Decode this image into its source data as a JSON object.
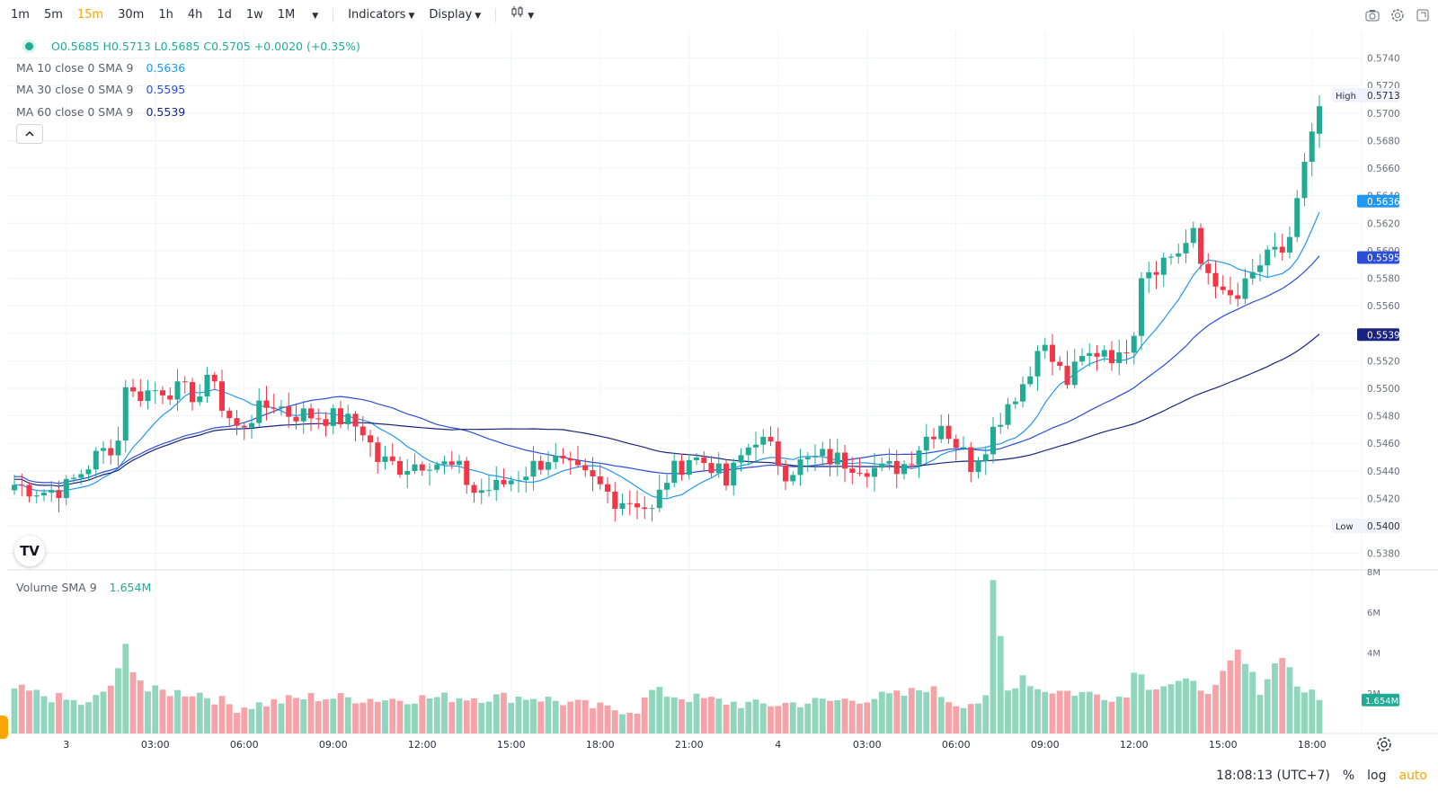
{
  "toolbar": {
    "timeframes": [
      "1m",
      "5m",
      "15m",
      "30m",
      "1h",
      "4h",
      "1d",
      "1w",
      "1M"
    ],
    "active_timeframe": "15m",
    "indicators_label": "Indicators",
    "display_label": "Display"
  },
  "legend": {
    "ohlc": "O0.5685 H0.5713 L0.5685 C0.5705 +0.0020 (+0.35%)",
    "ma10_label": "MA 10 close 0 SMA 9",
    "ma10_value": "0.5636",
    "ma30_label": "MA 30 close 0 SMA 9",
    "ma30_value": "0.5595",
    "ma60_label": "MA 60 close 0 SMA 9",
    "ma60_value": "0.5539",
    "volume_label": "Volume SMA 9",
    "volume_value": "1.654M"
  },
  "status": {
    "time": "18:08:13 (UTC+7)",
    "percent": "%",
    "log": "log",
    "auto": "auto"
  },
  "colors": {
    "up": "#22ab94",
    "down": "#f23645",
    "up_volume": "#8fd6bd",
    "down_volume": "#f5a3a8",
    "ma10": "#2196f3",
    "ma30": "#2a4fd6",
    "ma60": "#1a237e",
    "accent": "#f7a600"
  },
  "chart_data": {
    "type": "candlestick",
    "interval": "15m",
    "price_axis": {
      "ylim": [
        0.5368,
        0.576
      ],
      "ticks": [
        "0.5380",
        "0.5400",
        "0.5420",
        "0.5440",
        "0.5460",
        "0.5480",
        "0.5500",
        "0.5520",
        "0.5540",
        "0.5560",
        "0.5580",
        "0.5600",
        "0.5620",
        "0.5640",
        "0.5660",
        "0.5680",
        "0.5700",
        "0.5720",
        "0.5740"
      ],
      "high_label": "High",
      "high_value": "0.5713",
      "low_label": "Low",
      "low_value": "0.5400",
      "ma_labels": [
        {
          "name": "MA 10",
          "value": "0.5636"
        },
        {
          "name": "MA 30",
          "value": "0.5595"
        },
        {
          "name": "MA 60",
          "value": "0.5539"
        }
      ]
    },
    "volume_axis": {
      "ylim": [
        0,
        8000000
      ],
      "ticks": [
        "2M",
        "4M",
        "6M",
        "8M"
      ],
      "current_label": "1.654M"
    },
    "time_axis": {
      "labels": [
        {
          "text": "3",
          "bar": 7
        },
        {
          "text": "03:00",
          "bar": 19
        },
        {
          "text": "06:00",
          "bar": 31
        },
        {
          "text": "09:00",
          "bar": 43
        },
        {
          "text": "12:00",
          "bar": 55
        },
        {
          "text": "15:00",
          "bar": 67
        },
        {
          "text": "18:00",
          "bar": 79
        },
        {
          "text": "21:00",
          "bar": 91
        },
        {
          "text": "4",
          "bar": 103
        },
        {
          "text": "03:00",
          "bar": 115
        },
        {
          "text": "06:00",
          "bar": 127
        },
        {
          "text": "09:00",
          "bar": 139
        },
        {
          "text": "12:00",
          "bar": 151
        },
        {
          "text": "15:00",
          "bar": 163
        },
        {
          "text": "18:00",
          "bar": 175
        }
      ]
    },
    "anchors": [
      [
        0,
        0.543
      ],
      [
        4,
        0.5425
      ],
      [
        7,
        0.5428
      ],
      [
        11,
        0.545
      ],
      [
        14,
        0.5462
      ],
      [
        15,
        0.5505
      ],
      [
        16,
        0.5495
      ],
      [
        20,
        0.55
      ],
      [
        25,
        0.5495
      ],
      [
        27,
        0.551
      ],
      [
        28,
        0.5485
      ],
      [
        30,
        0.547
      ],
      [
        32,
        0.548
      ],
      [
        35,
        0.549
      ],
      [
        37,
        0.5482
      ],
      [
        41,
        0.548
      ],
      [
        44,
        0.5478
      ],
      [
        47,
        0.547
      ],
      [
        49,
        0.5448
      ],
      [
        52,
        0.5443
      ],
      [
        56,
        0.5448
      ],
      [
        60,
        0.544
      ],
      [
        62,
        0.5425
      ],
      [
        65,
        0.5428
      ],
      [
        69,
        0.544
      ],
      [
        72,
        0.545
      ],
      [
        75,
        0.544
      ],
      [
        78,
        0.5432
      ],
      [
        81,
        0.542
      ],
      [
        84,
        0.5418
      ],
      [
        86,
        0.541
      ],
      [
        88,
        0.5435
      ],
      [
        91,
        0.545
      ],
      [
        94,
        0.5445
      ],
      [
        96,
        0.543
      ],
      [
        98,
        0.545
      ],
      [
        100,
        0.5465
      ],
      [
        102,
        0.5455
      ],
      [
        104,
        0.544
      ],
      [
        106,
        0.5445
      ],
      [
        109,
        0.545
      ],
      [
        114,
        0.5445
      ],
      [
        117,
        0.544
      ],
      [
        120,
        0.5445
      ],
      [
        123,
        0.5465
      ],
      [
        125,
        0.5475
      ],
      [
        127,
        0.546
      ],
      [
        129,
        0.5445
      ],
      [
        131,
        0.546
      ],
      [
        134,
        0.549
      ],
      [
        137,
        0.551
      ],
      [
        138,
        0.5535
      ],
      [
        140,
        0.552
      ],
      [
        142,
        0.5505
      ],
      [
        144,
        0.552
      ],
      [
        147,
        0.553
      ],
      [
        149,
        0.552
      ],
      [
        151,
        0.5545
      ],
      [
        152,
        0.5585
      ],
      [
        154,
        0.559
      ],
      [
        157,
        0.56
      ],
      [
        159,
        0.561
      ],
      [
        160,
        0.559
      ],
      [
        162,
        0.558
      ],
      [
        163,
        0.5565
      ],
      [
        165,
        0.5565
      ],
      [
        168,
        0.559
      ],
      [
        171,
        0.56
      ],
      [
        172,
        0.561
      ],
      [
        174,
        0.566
      ],
      [
        175,
        0.568
      ],
      [
        176,
        0.5705
      ]
    ],
    "volume_anchors": [
      [
        0,
        2.2
      ],
      [
        10,
        1.4
      ],
      [
        13,
        2.4
      ],
      [
        14,
        3.0
      ],
      [
        15,
        4.3
      ],
      [
        16,
        3.3
      ],
      [
        18,
        2.1
      ],
      [
        25,
        2.0
      ],
      [
        30,
        1.3
      ],
      [
        40,
        1.8
      ],
      [
        50,
        1.7
      ],
      [
        60,
        1.8
      ],
      [
        70,
        1.8
      ],
      [
        80,
        1.2
      ],
      [
        84,
        1.2
      ],
      [
        86,
        2.1
      ],
      [
        90,
        1.8
      ],
      [
        100,
        1.4
      ],
      [
        110,
        1.6
      ],
      [
        120,
        1.9
      ],
      [
        123,
        2.3
      ],
      [
        127,
        1.5
      ],
      [
        131,
        1.6
      ],
      [
        132,
        7.4
      ],
      [
        134,
        2.1
      ],
      [
        136,
        2.9
      ],
      [
        138,
        2.2
      ],
      [
        144,
        2.0
      ],
      [
        150,
        1.8
      ],
      [
        151,
        3.3
      ],
      [
        153,
        2.4
      ],
      [
        157,
        2.5
      ],
      [
        162,
        2.2
      ],
      [
        165,
        4.0
      ],
      [
        168,
        2.2
      ],
      [
        171,
        4.0
      ],
      [
        173,
        2.4
      ],
      [
        176,
        1.654
      ]
    ],
    "series": [
      {
        "name": "MA 10 close 0 SMA 9",
        "period": 10,
        "value": "0.5636"
      },
      {
        "name": "MA 30 close 0 SMA 9",
        "period": 30,
        "value": "0.5595"
      },
      {
        "name": "MA 60 close 0 SMA 9",
        "period": 60,
        "value": "0.5539"
      }
    ]
  }
}
